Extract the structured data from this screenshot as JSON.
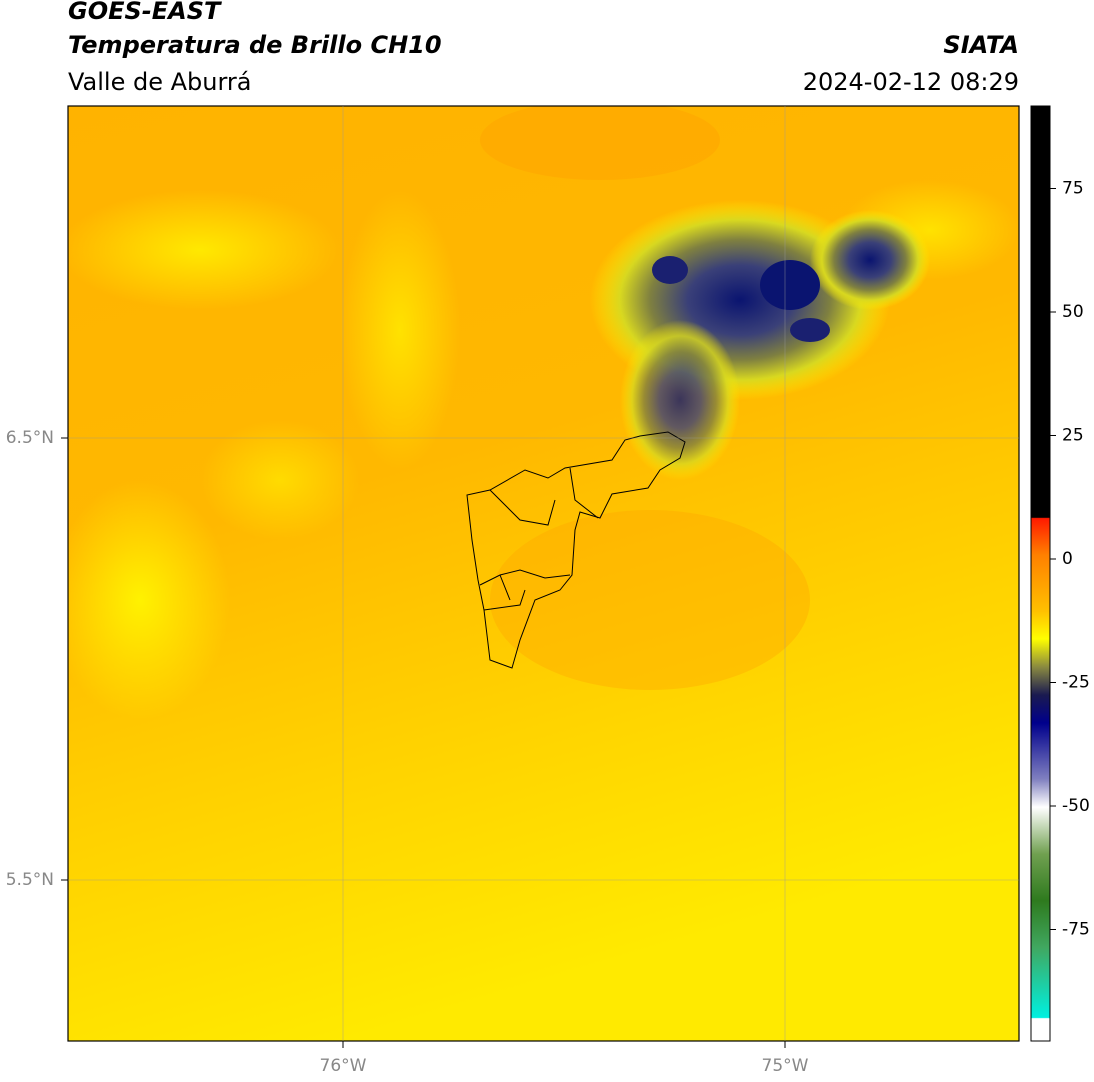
{
  "header": {
    "title": "GOES-EAST",
    "subtitle": "Temperatura de Brillo CH10",
    "region": "Valle de Aburrá",
    "source": "SIATA",
    "datetime": "2024-02-12 08:29"
  },
  "map": {
    "lat_ticks": [
      {
        "value": 6.5,
        "label": "6.5°N"
      },
      {
        "value": 5.5,
        "label": "5.5°N"
      }
    ],
    "lon_ticks": [
      {
        "value": -76,
        "label": "76°W"
      },
      {
        "value": -75,
        "label": "75°W"
      }
    ]
  },
  "colorbar": {
    "ticks": [
      75,
      50,
      25,
      0,
      -25,
      -50,
      -75
    ]
  }
}
